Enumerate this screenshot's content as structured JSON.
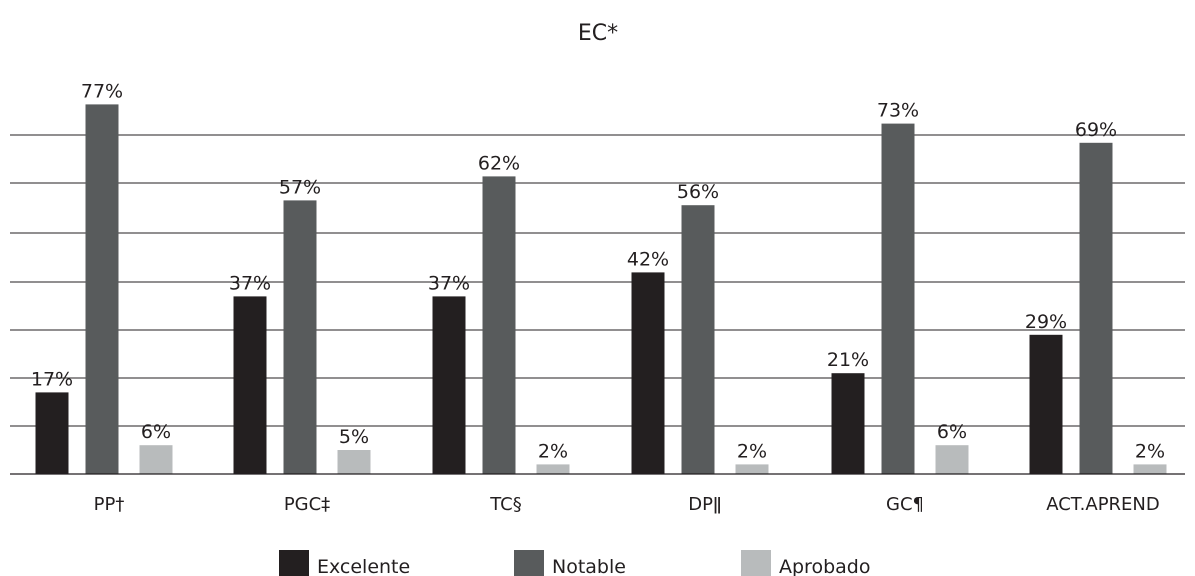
{
  "chart_data": {
    "type": "bar",
    "title": "EC*",
    "xlabel": "",
    "ylabel": "",
    "categories": [
      "PP†",
      "PGC‡",
      "TC§",
      "DPǁ",
      "GC¶",
      "ACT.APREND"
    ],
    "series": [
      {
        "name": "Excelente",
        "color": "#231f20",
        "values": [
          17,
          37,
          37,
          42,
          21,
          29
        ]
      },
      {
        "name": "Notable",
        "color": "#585b5c",
        "values": [
          77,
          57,
          62,
          56,
          73,
          69
        ]
      },
      {
        "name": "Aprobado",
        "color": "#b8bbbc",
        "values": [
          6,
          5,
          2,
          2,
          6,
          2
        ]
      }
    ],
    "value_suffix": "%",
    "ylim": [
      0,
      80
    ],
    "grid": true,
    "legend_position": "bottom"
  }
}
